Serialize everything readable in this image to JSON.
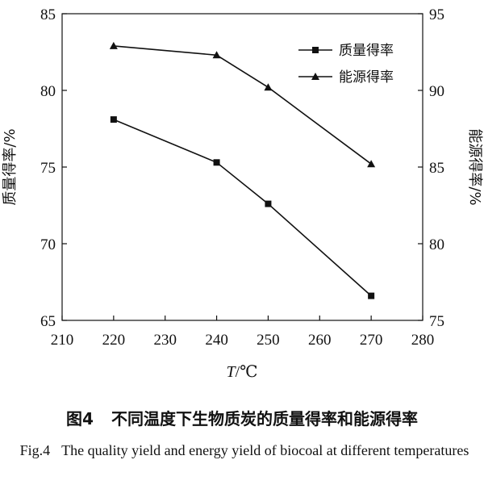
{
  "chart_data": {
    "type": "line",
    "x": [
      220,
      240,
      250,
      270
    ],
    "xlabel_var": "T",
    "xlabel_unit": "/℃",
    "xlim": [
      210,
      280
    ],
    "xticks": [
      210,
      220,
      230,
      240,
      250,
      260,
      270,
      280
    ],
    "ylabel_left": "质量得率/%",
    "ylim_left": [
      65,
      85
    ],
    "yticks_left": [
      65,
      70,
      75,
      80,
      85
    ],
    "ylabel_right": "能源得率/%",
    "ylim_right": [
      75,
      95
    ],
    "yticks_right": [
      75,
      80,
      85,
      90,
      95
    ],
    "series": [
      {
        "name": "质量得率",
        "axis": "left",
        "marker": "square",
        "values": [
          78.1,
          75.3,
          72.6,
          66.6
        ]
      },
      {
        "name": "能源得率",
        "axis": "right",
        "marker": "triangle",
        "values": [
          92.9,
          92.3,
          90.2,
          85.2
        ]
      }
    ],
    "legend_position": "top-right",
    "grid": false
  },
  "caption": {
    "zh_label": "图4",
    "zh_text": "不同温度下生物质炭的质量得率和能源得率",
    "en_label": "Fig.4",
    "en_text": "The quality yield and energy yield of biocoal at different temperatures"
  }
}
